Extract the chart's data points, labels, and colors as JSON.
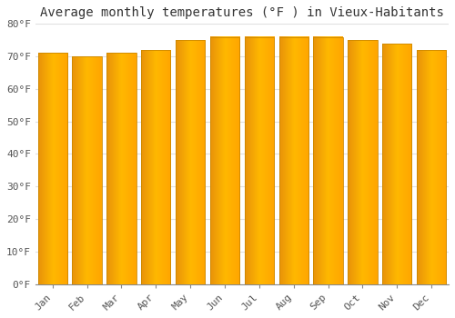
{
  "months": [
    "Jan",
    "Feb",
    "Mar",
    "Apr",
    "May",
    "Jun",
    "Jul",
    "Aug",
    "Sep",
    "Oct",
    "Nov",
    "Dec"
  ],
  "values": [
    71,
    70,
    71,
    72,
    75,
    76,
    76,
    76,
    76,
    75,
    74,
    72
  ],
  "bar_color_left": "#E8920A",
  "bar_color_center": "#FFB800",
  "bar_color_right": "#FFA500",
  "background_color": "#FFFFFF",
  "grid_color": "#E0E0E0",
  "title": "Average monthly temperatures (°F ) in Vieux-Habitants",
  "title_fontsize": 10,
  "ytick_labels": [
    "0°F",
    "10°F",
    "20°F",
    "30°F",
    "40°F",
    "50°F",
    "60°F",
    "70°F",
    "80°F"
  ],
  "ytick_values": [
    0,
    10,
    20,
    30,
    40,
    50,
    60,
    70,
    80
  ],
  "ylim": [
    0,
    80
  ],
  "tick_fontsize": 8,
  "tick_font": "monospace",
  "bar_width": 0.85
}
